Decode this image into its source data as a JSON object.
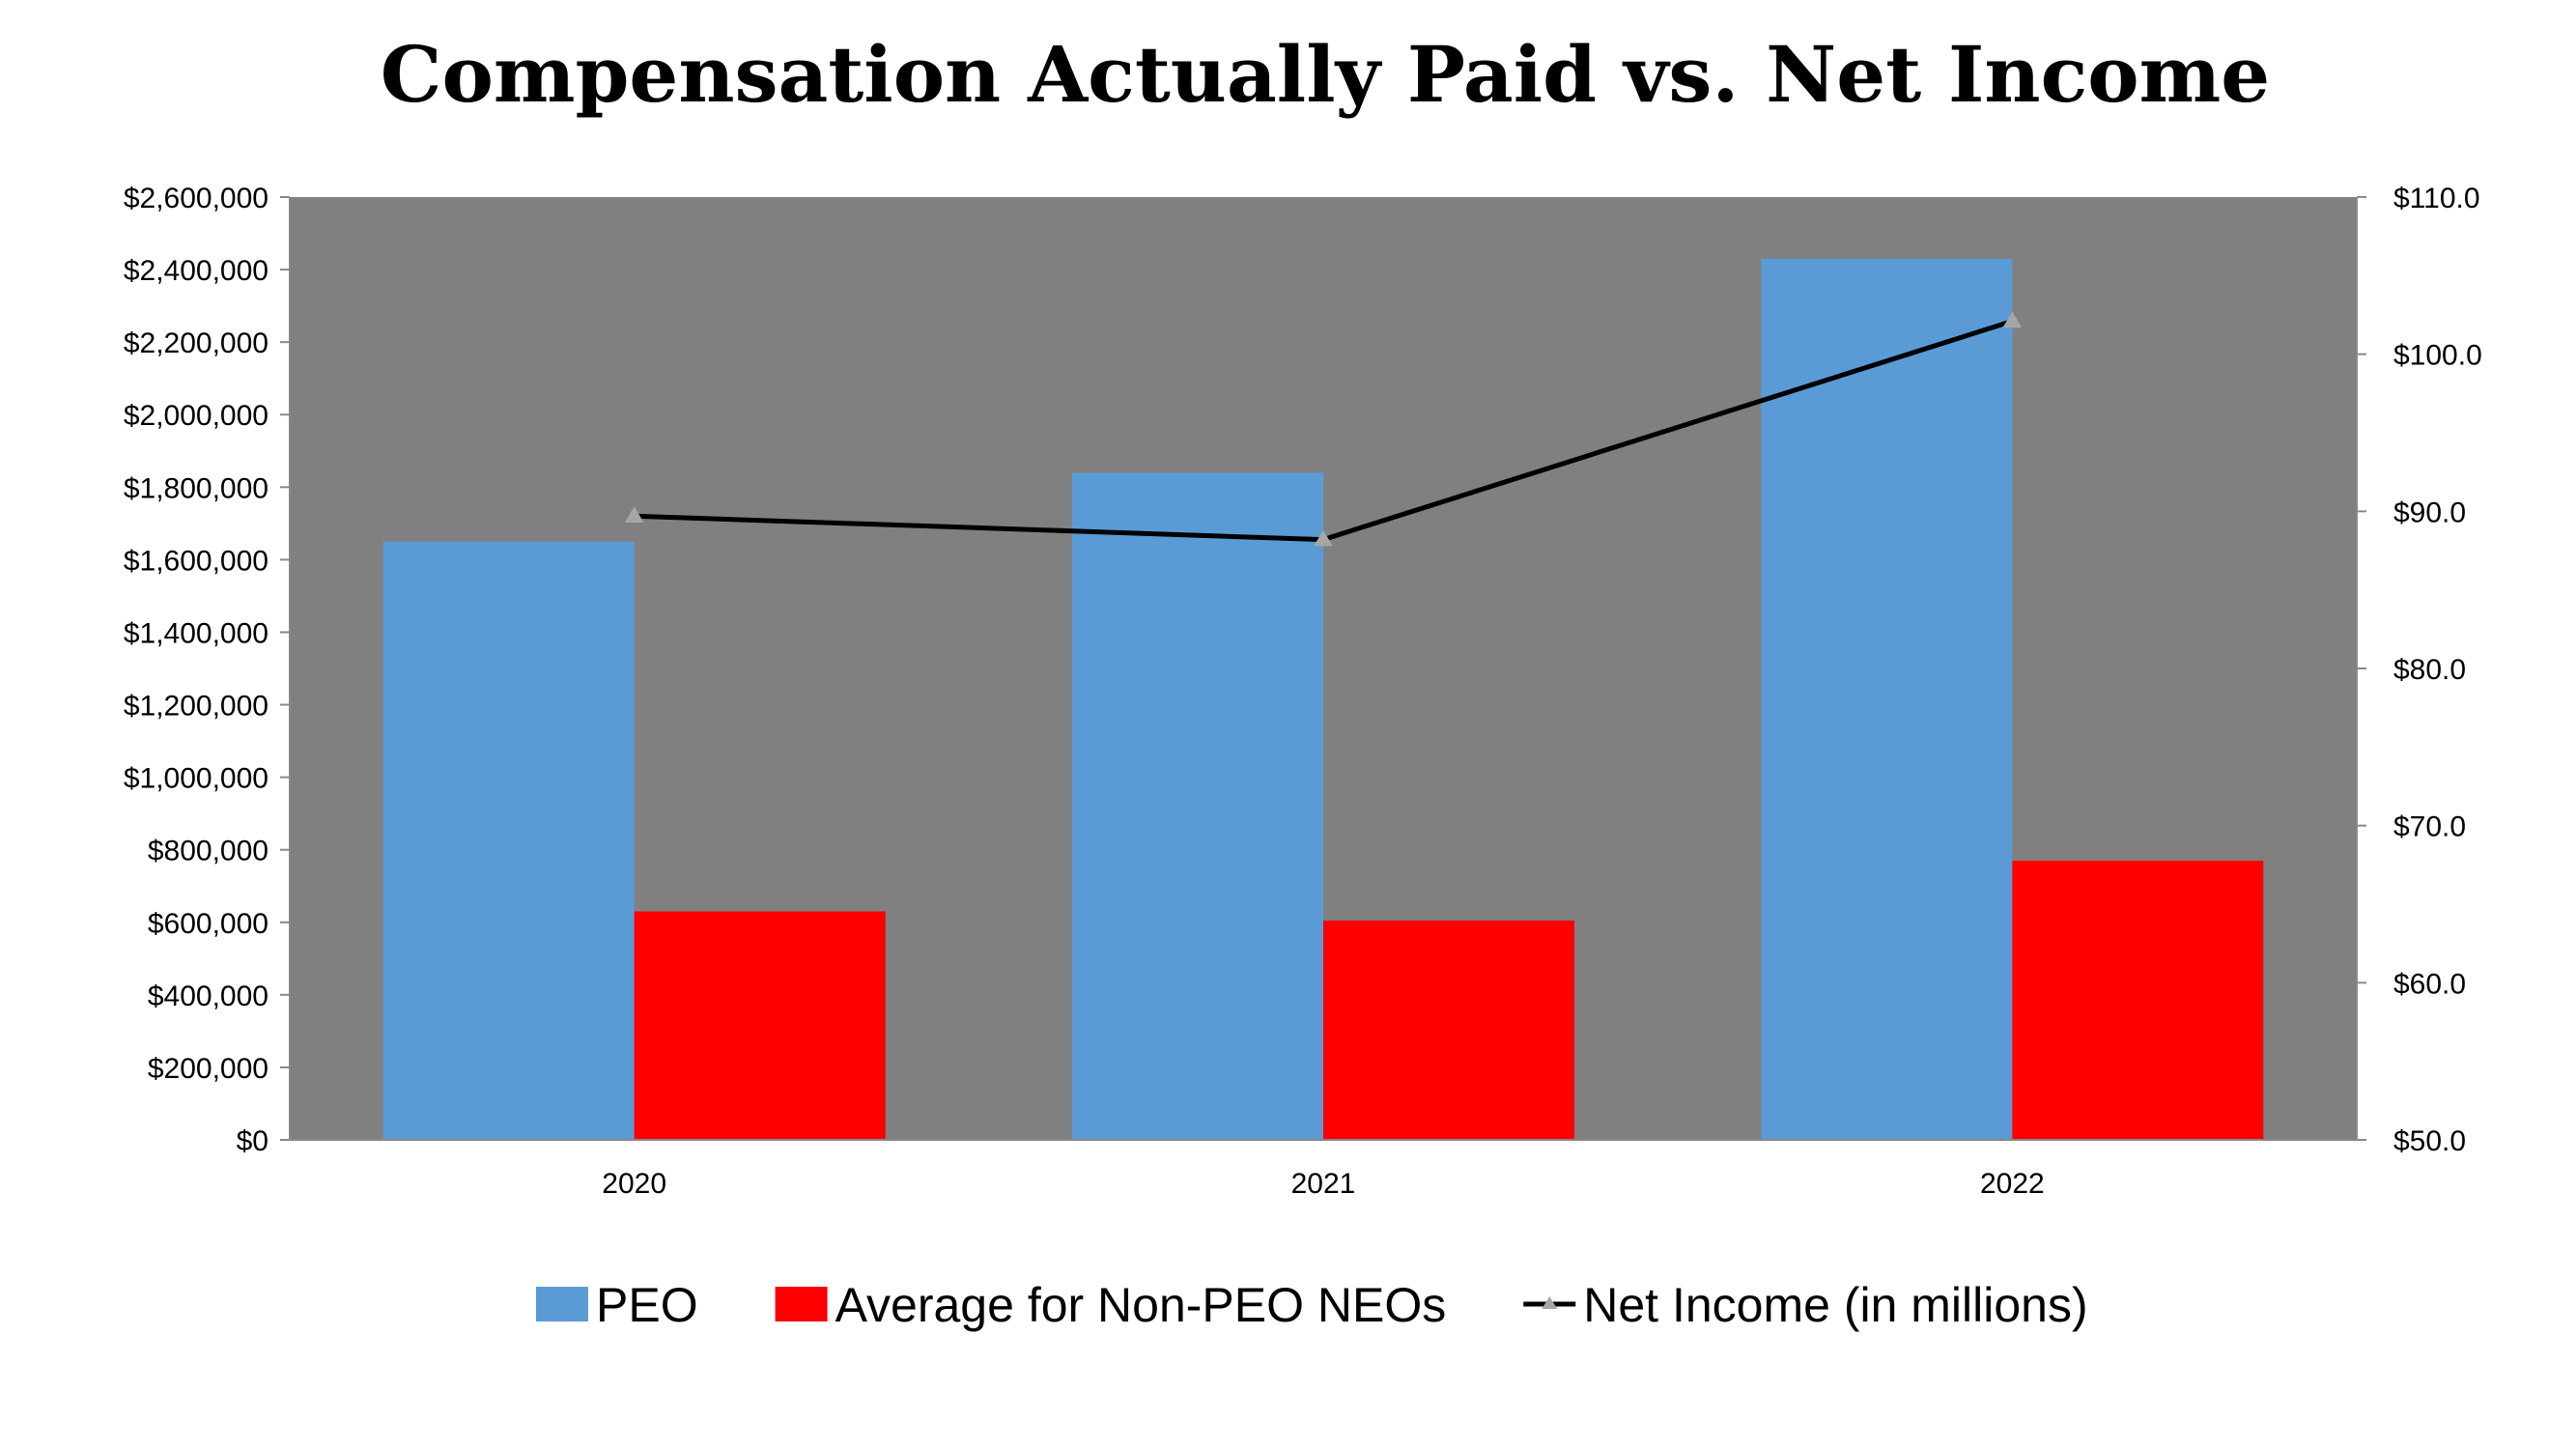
{
  "chart_data": {
    "type": "bar",
    "title": "Compensation Actually Paid vs. Net Income",
    "categories": [
      "2020",
      "2021",
      "2022"
    ],
    "series": [
      {
        "name": "PEO",
        "kind": "bar",
        "axis": "left",
        "color": "#5B9BD5",
        "values": [
          1650000,
          1840000,
          2430000
        ]
      },
      {
        "name": "Average for Non-PEO NEOs",
        "kind": "bar",
        "axis": "left",
        "color": "#FF0000",
        "values": [
          630000,
          605000,
          770000
        ]
      },
      {
        "name": "Net Income (in millions)",
        "kind": "line",
        "axis": "right",
        "color": "#000000",
        "marker": "triangle",
        "values": [
          89.7,
          88.2,
          102.1
        ]
      }
    ],
    "y_left": {
      "ylim": [
        0,
        2600000
      ],
      "ticks": [
        0,
        200000,
        400000,
        600000,
        800000,
        1000000,
        1200000,
        1400000,
        1600000,
        1800000,
        2000000,
        2200000,
        2400000,
        2600000
      ],
      "tick_labels": [
        "$0",
        "$200,000",
        "$400,000",
        "$600,000",
        "$800,000",
        "$1,000,000",
        "$1,200,000",
        "$1,400,000",
        "$1,600,000",
        "$1,800,000",
        "$2,000,000",
        "$2,200,000",
        "$2,400,000",
        "$2,600,000"
      ]
    },
    "y_right": {
      "ylim": [
        50,
        110
      ],
      "ticks": [
        50,
        60,
        70,
        80,
        90,
        100,
        110
      ],
      "tick_labels": [
        "$50.0",
        "$60.0",
        "$70.0",
        "$80.0",
        "$90.0",
        "$100.0",
        "$110.0"
      ]
    },
    "plot_background": "#808080",
    "grid": false,
    "legend_position": "bottom"
  }
}
